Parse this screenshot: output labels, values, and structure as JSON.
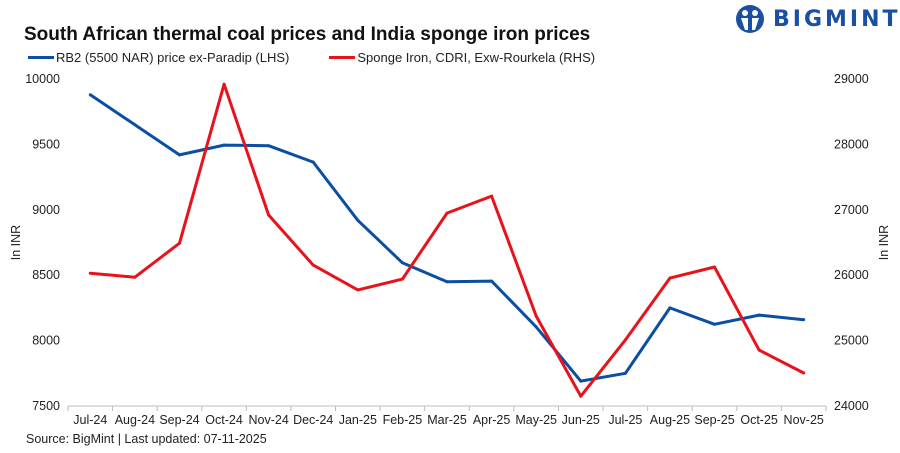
{
  "header": {
    "title": "South African thermal coal prices and India sponge iron prices",
    "logo_text": "BIGMINT"
  },
  "footer": {
    "source": "Source: BigMint | Last updated: 07-11-2025"
  },
  "chart_data": {
    "type": "line",
    "title": "South African thermal coal prices and India sponge iron prices",
    "categories": [
      "Jul-24",
      "Aug-24",
      "Sep-24",
      "Oct-24",
      "Nov-24",
      "Dec-24",
      "Jan-25",
      "Feb-25",
      "Mar-25",
      "Apr-25",
      "May-25",
      "Jun-25",
      "Jul-25",
      "Aug-25",
      "Sep-25",
      "Oct-25",
      "Nov-25"
    ],
    "y_left": {
      "label": "In INR",
      "range": [
        7500,
        10000
      ],
      "ticks": [
        7500,
        8000,
        8500,
        9000,
        9500,
        10000
      ]
    },
    "y_right": {
      "label": "In INR",
      "range": [
        24000,
        29000
      ],
      "ticks": [
        24000,
        25000,
        26000,
        27000,
        28000,
        29000
      ]
    },
    "grid": false,
    "legend": "top-left",
    "series": [
      {
        "name": "RB2 (5500 NAR) price ex-Paradip (LHS)",
        "axis": "left",
        "color": "#0b4ea2",
        "values": [
          9880,
          9650,
          9420,
          9495,
          9490,
          9365,
          8920,
          8595,
          8450,
          8455,
          8105,
          7690,
          7750,
          8250,
          8125,
          8195,
          8160
        ]
      },
      {
        "name": "Sponge Iron, CDRI, Exw-Rourkela (RHS)",
        "axis": "right",
        "color": "#e8121b",
        "values": [
          26030,
          25970,
          26490,
          28920,
          26920,
          26155,
          25775,
          25940,
          26950,
          27210,
          25375,
          24150,
          25010,
          25955,
          26125,
          24855,
          24505
        ]
      }
    ]
  }
}
